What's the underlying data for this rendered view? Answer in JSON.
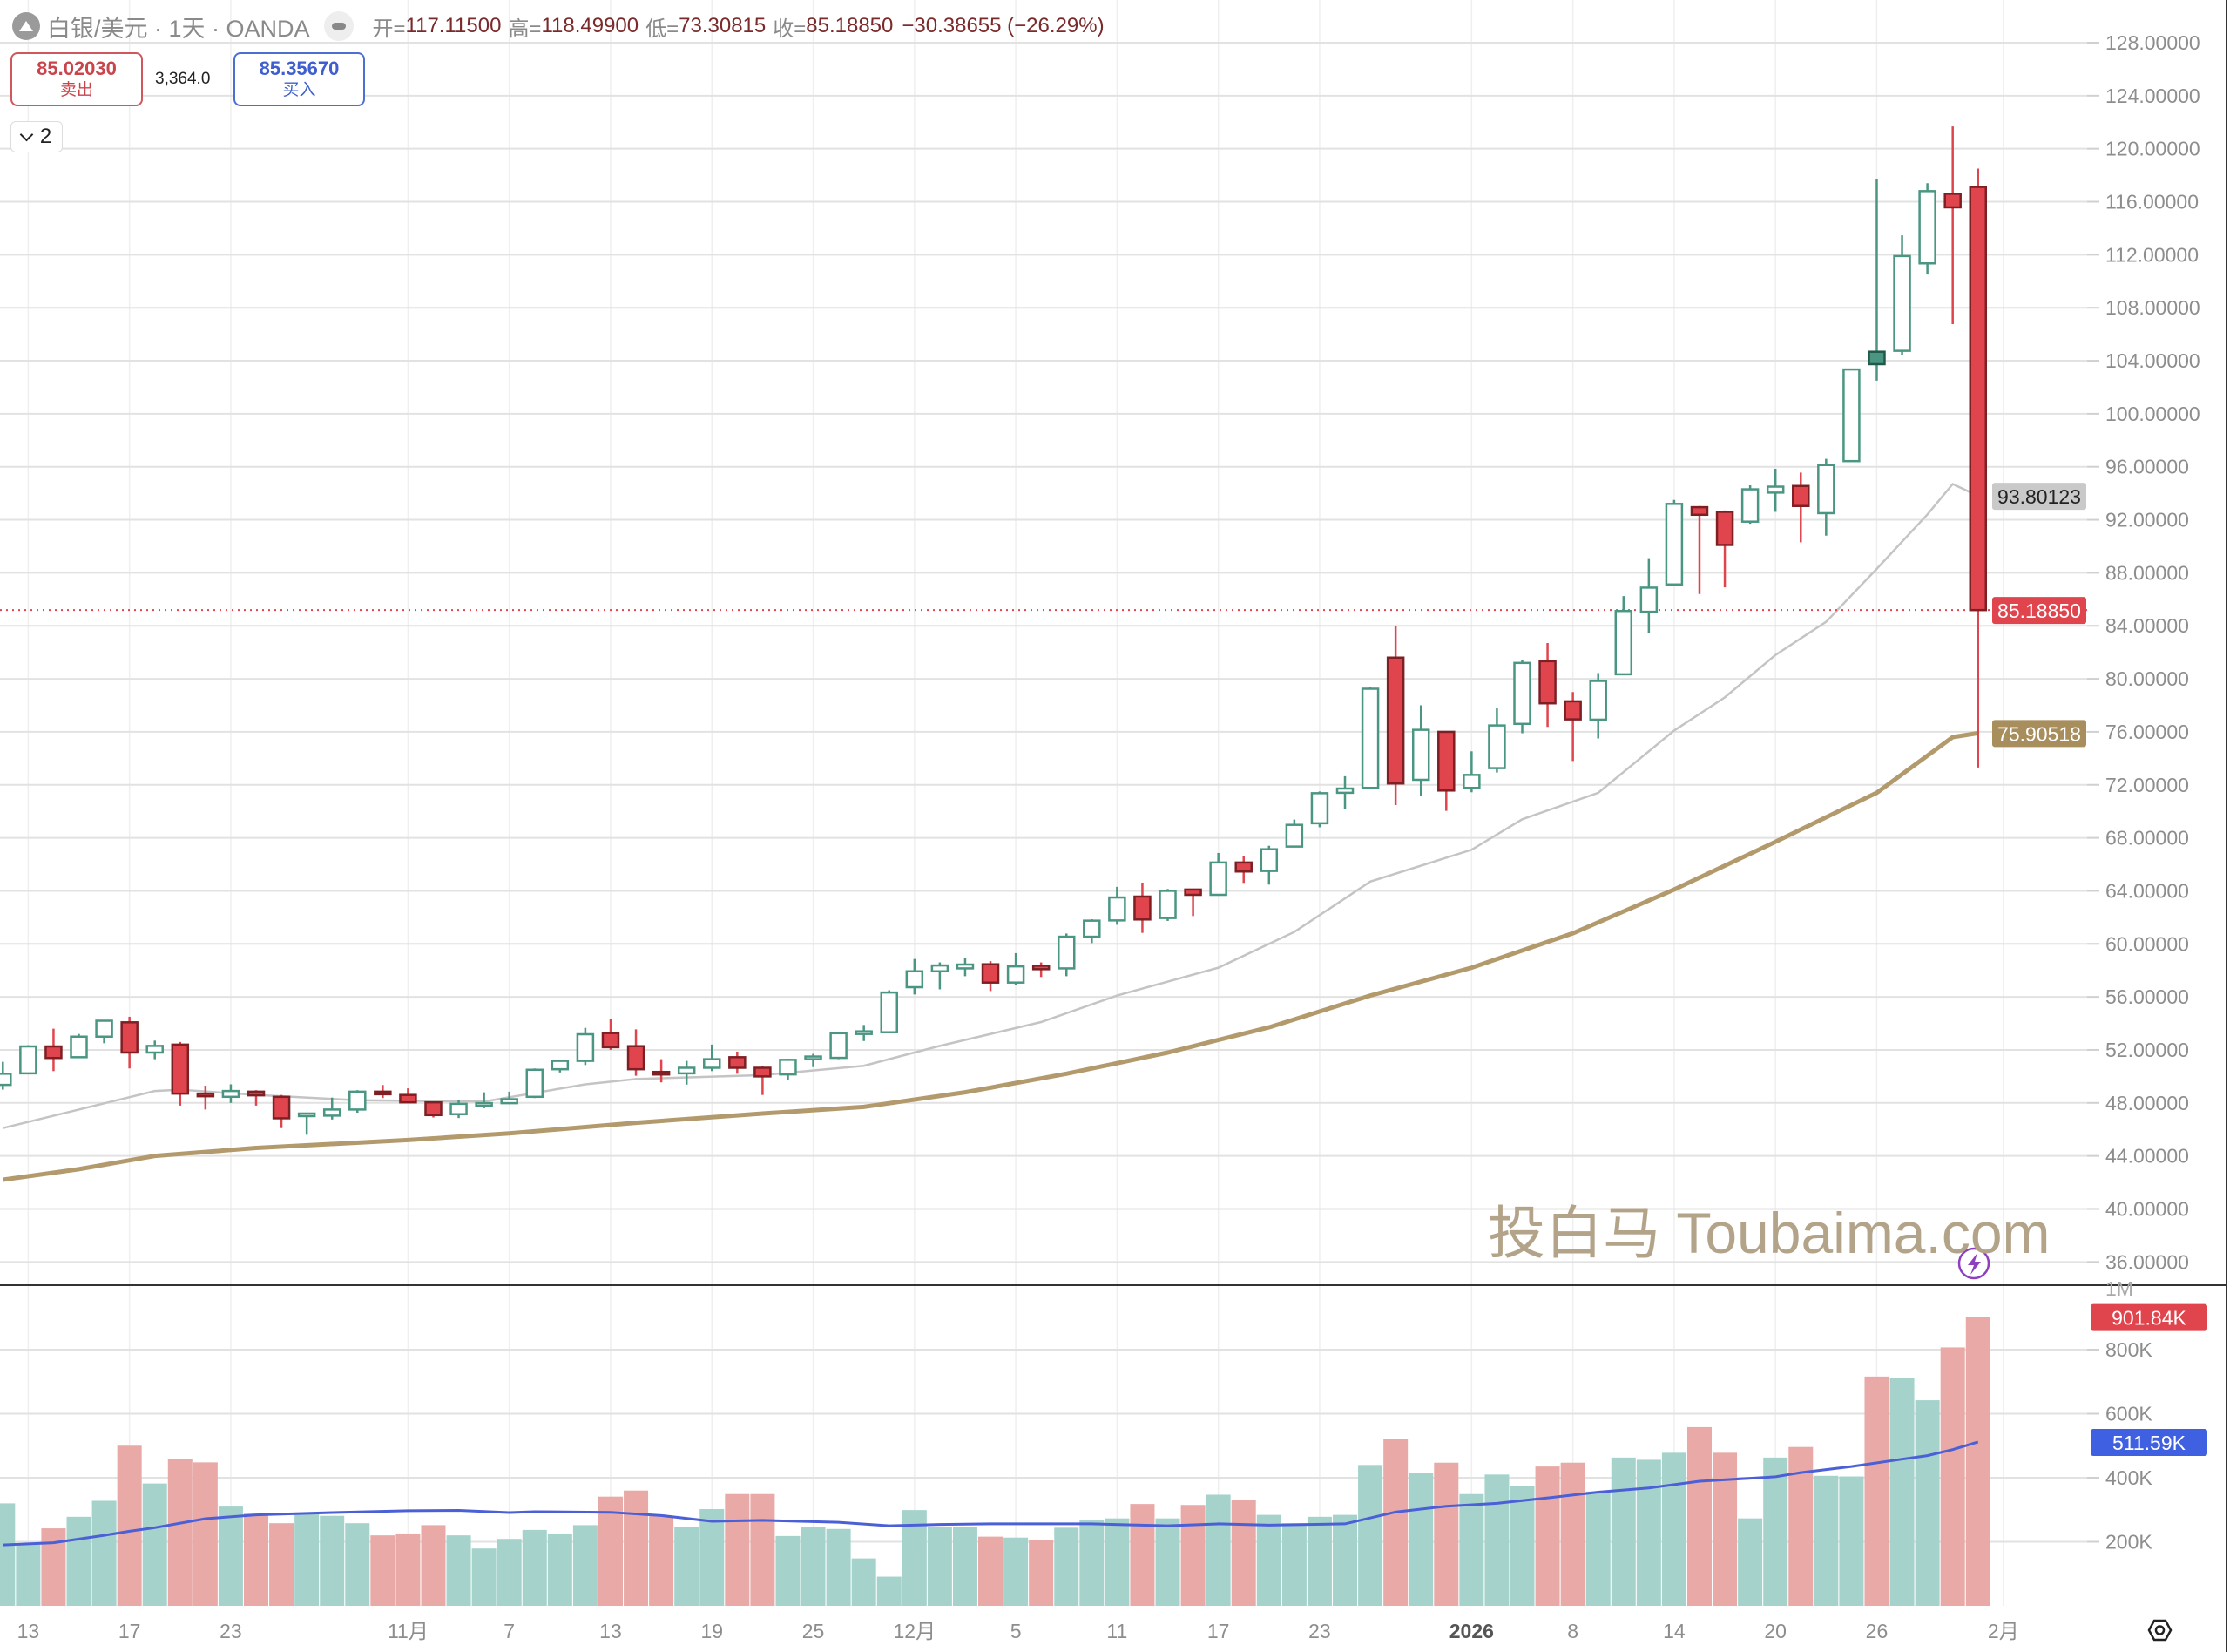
{
  "header": {
    "symbol_icon": "silver-coin-icon",
    "title": "白银/美元 · 1天 · OANDA",
    "visibility_icon": "eye-hide-icon",
    "open_label": "开=",
    "open": "117.11500",
    "high_label": "高=",
    "high": "118.49900",
    "low_label": "低=",
    "low": "73.30815",
    "close_label": "收=",
    "close": "85.18850",
    "change": "−30.38655 (−26.29%)"
  },
  "trade": {
    "sell_price": "85.02030",
    "sell_label": "卖出",
    "spread": "3,364.0",
    "buy_price": "85.35670",
    "buy_label": "买入"
  },
  "indicators_toggle": {
    "icon": "chevron-down-icon",
    "count": "2"
  },
  "watermark": "投白马 Toubaima.com",
  "colors": {
    "up": "#4a9682",
    "down": "#e0454e",
    "down_border": "#7e1f24",
    "vol_up": "#a5d3cc",
    "vol_down": "#e8a9a7",
    "ma_short": "#c4c4c4",
    "ma_long": "#b39a6c",
    "vol_ma": "#4b5fd6",
    "last_price": "#e0454e",
    "ma_short_label_bg": "#c9c9c9",
    "ma_long_label_bg": "#a88e5c",
    "vol_label_bg": "#e0454e",
    "vol_ma_label_bg": "#3f60e0"
  },
  "chart_data": {
    "type": "candlestick",
    "interval": "1天",
    "ylim": [
      36,
      128
    ],
    "price_ticks": [
      "128.00000",
      "124.00000",
      "120.00000",
      "116.00000",
      "112.00000",
      "108.00000",
      "104.00000",
      "100.00000",
      "96.00000",
      "92.00000",
      "88.00000",
      "84.00000",
      "80.00000",
      "76.00000",
      "72.00000",
      "68.00000",
      "64.00000",
      "60.00000",
      "56.00000",
      "52.00000",
      "48.00000",
      "44.00000",
      "40.00000",
      "36.00000"
    ],
    "x_ticks": [
      {
        "index": 1,
        "label": "13"
      },
      {
        "index": 5,
        "label": "17"
      },
      {
        "index": 9,
        "label": "23"
      },
      {
        "index": 16,
        "label": "11月"
      },
      {
        "index": 20,
        "label": "7"
      },
      {
        "index": 24,
        "label": "13"
      },
      {
        "index": 28,
        "label": "19"
      },
      {
        "index": 32,
        "label": "25"
      },
      {
        "index": 36,
        "label": "12月"
      },
      {
        "index": 40,
        "label": "5"
      },
      {
        "index": 44,
        "label": "11"
      },
      {
        "index": 48,
        "label": "17"
      },
      {
        "index": 52,
        "label": "23"
      },
      {
        "index": 58,
        "label": "2026",
        "bold": true
      },
      {
        "index": 62,
        "label": "8"
      },
      {
        "index": 66,
        "label": "14"
      },
      {
        "index": 70,
        "label": "20"
      },
      {
        "index": 74,
        "label": "26"
      },
      {
        "index": 79,
        "label": "2月"
      }
    ],
    "ohlc_columns": [
      "open",
      "high",
      "low",
      "close"
    ],
    "candles": [
      [
        49.36,
        51.1,
        49.0,
        50.2
      ],
      [
        50.23,
        52.35,
        50.16,
        52.26
      ],
      [
        52.26,
        53.6,
        50.4,
        51.39
      ],
      [
        51.45,
        53.2,
        51.4,
        53.0
      ],
      [
        53.0,
        54.25,
        52.5,
        54.2
      ],
      [
        54.08,
        54.5,
        50.6,
        51.8
      ],
      [
        51.8,
        52.7,
        51.3,
        52.3
      ],
      [
        52.4,
        52.6,
        47.8,
        48.7
      ],
      [
        48.7,
        49.3,
        47.5,
        48.55
      ],
      [
        48.46,
        49.4,
        48.0,
        48.9
      ],
      [
        48.85,
        48.96,
        47.8,
        48.57
      ],
      [
        48.46,
        48.6,
        46.1,
        46.84
      ],
      [
        47.1,
        47.25,
        45.6,
        47.2
      ],
      [
        47.04,
        48.4,
        46.75,
        47.5
      ],
      [
        47.5,
        48.96,
        47.26,
        48.85
      ],
      [
        48.85,
        49.35,
        48.37,
        48.76
      ],
      [
        48.6,
        49.1,
        48.0,
        48.04
      ],
      [
        48.04,
        48.1,
        46.9,
        47.08
      ],
      [
        47.15,
        48.2,
        46.86,
        47.93
      ],
      [
        47.85,
        48.8,
        47.6,
        47.98
      ],
      [
        47.98,
        48.85,
        47.98,
        48.28
      ],
      [
        48.46,
        50.6,
        48.37,
        50.5
      ],
      [
        50.54,
        51.26,
        50.3,
        51.17
      ],
      [
        51.17,
        53.66,
        50.86,
        53.18
      ],
      [
        53.27,
        54.36,
        52.0,
        52.2
      ],
      [
        52.28,
        53.55,
        50.05,
        50.54
      ],
      [
        50.34,
        51.3,
        49.55,
        50.16
      ],
      [
        50.23,
        51.17,
        49.38,
        50.65
      ],
      [
        50.65,
        52.4,
        50.4,
        51.3
      ],
      [
        51.45,
        51.87,
        50.2,
        50.65
      ],
      [
        50.65,
        50.8,
        48.6,
        50.0
      ],
      [
        50.15,
        51.33,
        49.7,
        51.25
      ],
      [
        51.45,
        51.7,
        50.7,
        51.5
      ],
      [
        51.4,
        53.35,
        51.3,
        53.26
      ],
      [
        53.33,
        53.88,
        52.67,
        53.4
      ],
      [
        53.33,
        56.5,
        53.33,
        56.33
      ],
      [
        56.73,
        58.86,
        56.18,
        57.93
      ],
      [
        57.93,
        58.6,
        56.57,
        58.37
      ],
      [
        58.15,
        58.96,
        57.56,
        58.44
      ],
      [
        58.46,
        58.7,
        56.44,
        57.08
      ],
      [
        57.08,
        59.3,
        56.88,
        58.3
      ],
      [
        58.35,
        58.6,
        57.5,
        58.09
      ],
      [
        58.15,
        60.78,
        57.56,
        60.54
      ],
      [
        60.54,
        61.86,
        60.06,
        61.75
      ],
      [
        61.77,
        64.3,
        61.44,
        63.5
      ],
      [
        63.57,
        64.62,
        60.83,
        61.84
      ],
      [
        61.95,
        64.14,
        61.73,
        64.0
      ],
      [
        64.1,
        64.14,
        62.1,
        63.7
      ],
      [
        63.7,
        66.86,
        63.7,
        66.14
      ],
      [
        66.14,
        66.6,
        64.6,
        65.46
      ],
      [
        65.5,
        67.4,
        64.47,
        67.14
      ],
      [
        67.34,
        69.38,
        67.34,
        68.98
      ],
      [
        69.1,
        71.5,
        68.8,
        71.37
      ],
      [
        71.4,
        72.65,
        70.2,
        71.72
      ],
      [
        71.77,
        79.4,
        71.77,
        79.25
      ],
      [
        81.6,
        83.96,
        70.47,
        72.1
      ],
      [
        72.38,
        78.0,
        71.17,
        76.15
      ],
      [
        76.0,
        76.04,
        70.04,
        71.57
      ],
      [
        71.77,
        74.53,
        71.44,
        72.75
      ],
      [
        73.26,
        77.8,
        72.93,
        76.48
      ],
      [
        76.6,
        81.4,
        75.9,
        81.2
      ],
      [
        81.33,
        82.7,
        76.37,
        78.15
      ],
      [
        78.3,
        79.0,
        73.8,
        76.94
      ],
      [
        76.92,
        80.43,
        75.5,
        79.84
      ],
      [
        80.34,
        86.24,
        80.34,
        85.12
      ],
      [
        85.06,
        89.1,
        83.46,
        86.88
      ],
      [
        87.12,
        93.5,
        87.12,
        93.2
      ],
      [
        92.95,
        93.04,
        86.4,
        92.38
      ],
      [
        92.6,
        92.7,
        86.9,
        90.1
      ],
      [
        91.86,
        94.6,
        91.7,
        94.3
      ],
      [
        94.05,
        95.85,
        92.6,
        94.5
      ],
      [
        94.55,
        95.56,
        90.3,
        93.04
      ],
      [
        92.5,
        96.6,
        90.8,
        96.13
      ],
      [
        96.43,
        103.4,
        96.4,
        103.34
      ],
      [
        104.68,
        117.7,
        102.5,
        103.74
      ],
      [
        104.75,
        113.46,
        104.4,
        111.9
      ],
      [
        111.35,
        117.4,
        110.5,
        116.8
      ],
      [
        116.6,
        121.68,
        106.76,
        115.575
      ],
      [
        117.115,
        118.499,
        73.30815,
        85.1885
      ]
    ],
    "ma_short": [
      [
        0,
        46.1
      ],
      [
        3,
        47.5
      ],
      [
        6,
        48.9
      ],
      [
        7,
        49.0
      ],
      [
        10,
        48.6
      ],
      [
        14,
        48.2
      ],
      [
        19,
        48.1
      ],
      [
        23,
        49.4
      ],
      [
        25,
        49.8
      ],
      [
        30,
        50.1
      ],
      [
        34,
        50.8
      ],
      [
        37,
        52.3
      ],
      [
        41,
        54.1
      ],
      [
        44,
        56.1
      ],
      [
        48,
        58.2
      ],
      [
        51,
        60.9
      ],
      [
        54,
        64.7
      ],
      [
        58,
        67.1
      ],
      [
        60,
        69.4
      ],
      [
        63,
        71.4
      ],
      [
        66,
        76.1
      ],
      [
        68,
        78.6
      ],
      [
        70,
        81.8
      ],
      [
        72,
        84.3
      ],
      [
        74,
        88.3
      ],
      [
        76,
        92.4
      ],
      [
        77,
        94.7
      ],
      [
        78,
        93.80123
      ]
    ],
    "ma_long": [
      [
        0,
        42.2
      ],
      [
        3,
        43.0
      ],
      [
        6,
        44.0
      ],
      [
        10,
        44.6
      ],
      [
        16,
        45.2
      ],
      [
        20,
        45.7
      ],
      [
        25,
        46.5
      ],
      [
        30,
        47.2
      ],
      [
        34,
        47.7
      ],
      [
        38,
        48.8
      ],
      [
        42,
        50.2
      ],
      [
        46,
        51.8
      ],
      [
        50,
        53.7
      ],
      [
        54,
        56.1
      ],
      [
        58,
        58.2
      ],
      [
        62,
        60.8
      ],
      [
        66,
        64.1
      ],
      [
        70,
        67.7
      ],
      [
        74,
        71.4
      ],
      [
        77,
        75.6
      ],
      [
        78,
        75.90518
      ]
    ],
    "last_price": "85.18850",
    "ma_short_value": "93.80123",
    "ma_long_value": "75.90518",
    "volume": {
      "unit": "K",
      "ticks": [
        "1M",
        "800K",
        "600K",
        "400K",
        "200K"
      ],
      "values": [
        320,
        192,
        242,
        278,
        328,
        500,
        382,
        458,
        448,
        310,
        288,
        258,
        287,
        281,
        258,
        220,
        226,
        252,
        220,
        179,
        209,
        237,
        226,
        252,
        341,
        360,
        281,
        247,
        302,
        349,
        349,
        218,
        247,
        240,
        148,
        91,
        299,
        245,
        245,
        216,
        213,
        206,
        244,
        267,
        273,
        318,
        273,
        315,
        347,
        330,
        284,
        258,
        278,
        284,
        440,
        522,
        416,
        447,
        349,
        410,
        375,
        435,
        447,
        357,
        463,
        456,
        478,
        558,
        478,
        273,
        463,
        496,
        406,
        404,
        716,
        712,
        642,
        807,
        901.84
      ],
      "ma": [
        [
          0,
          190
        ],
        [
          2,
          197
        ],
        [
          4,
          220
        ],
        [
          5,
          233
        ],
        [
          6,
          244
        ],
        [
          8,
          272
        ],
        [
          10,
          284
        ],
        [
          13,
          291
        ],
        [
          16,
          297
        ],
        [
          18,
          298
        ],
        [
          20,
          291
        ],
        [
          21,
          294
        ],
        [
          24,
          292
        ],
        [
          26,
          282
        ],
        [
          28,
          264
        ],
        [
          30,
          267
        ],
        [
          33,
          261
        ],
        [
          35,
          250
        ],
        [
          37,
          254
        ],
        [
          39,
          256
        ],
        [
          43,
          256
        ],
        [
          46,
          250
        ],
        [
          48,
          256
        ],
        [
          50,
          252
        ],
        [
          53,
          256
        ],
        [
          55,
          293
        ],
        [
          57,
          311
        ],
        [
          59,
          320
        ],
        [
          61,
          337
        ],
        [
          63,
          355
        ],
        [
          65,
          368
        ],
        [
          67,
          389
        ],
        [
          70,
          403
        ],
        [
          71,
          416
        ],
        [
          73,
          435
        ],
        [
          75,
          458
        ],
        [
          76,
          469
        ],
        [
          77,
          488
        ],
        [
          78,
          511.59
        ]
      ],
      "last_label": "901.84K",
      "ma_label": "511.59K"
    }
  },
  "icons": {
    "alert": "lightning-icon",
    "settings": "settings-hex-icon"
  }
}
